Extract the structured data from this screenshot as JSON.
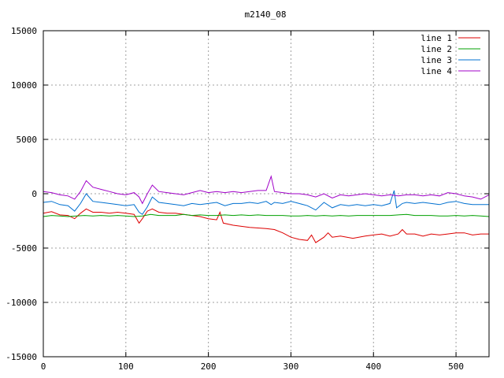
{
  "chart_data": {
    "type": "line",
    "title": "m2140_08",
    "xlabel": "",
    "ylabel": "",
    "xlim": [
      0,
      540
    ],
    "ylim": [
      -15000,
      15000
    ],
    "grid": true,
    "legend_position": "top-right",
    "x_ticks": [
      0,
      100,
      200,
      300,
      400,
      500
    ],
    "y_ticks": [
      -15000,
      -10000,
      -5000,
      0,
      5000,
      10000,
      15000
    ],
    "series": [
      {
        "name": "line 1",
        "color": "#dd0000",
        "points": [
          [
            0,
            -1800
          ],
          [
            10,
            -1650
          ],
          [
            20,
            -1950
          ],
          [
            30,
            -2000
          ],
          [
            38,
            -2300
          ],
          [
            45,
            -1800
          ],
          [
            52,
            -1400
          ],
          [
            60,
            -1700
          ],
          [
            70,
            -1700
          ],
          [
            80,
            -1800
          ],
          [
            90,
            -1700
          ],
          [
            100,
            -1800
          ],
          [
            110,
            -1900
          ],
          [
            116,
            -2700
          ],
          [
            120,
            -2300
          ],
          [
            126,
            -1600
          ],
          [
            132,
            -1400
          ],
          [
            140,
            -1700
          ],
          [
            150,
            -1800
          ],
          [
            160,
            -1800
          ],
          [
            170,
            -1900
          ],
          [
            180,
            -2000
          ],
          [
            190,
            -2100
          ],
          [
            200,
            -2300
          ],
          [
            210,
            -2400
          ],
          [
            214,
            -1700
          ],
          [
            218,
            -2700
          ],
          [
            230,
            -2900
          ],
          [
            250,
            -3100
          ],
          [
            270,
            -3200
          ],
          [
            280,
            -3300
          ],
          [
            290,
            -3600
          ],
          [
            300,
            -4000
          ],
          [
            310,
            -4200
          ],
          [
            320,
            -4300
          ],
          [
            325,
            -3800
          ],
          [
            330,
            -4500
          ],
          [
            340,
            -4000
          ],
          [
            345,
            -3600
          ],
          [
            350,
            -4000
          ],
          [
            360,
            -3900
          ],
          [
            375,
            -4100
          ],
          [
            390,
            -3900
          ],
          [
            400,
            -3800
          ],
          [
            410,
            -3700
          ],
          [
            420,
            -3900
          ],
          [
            430,
            -3700
          ],
          [
            435,
            -3300
          ],
          [
            440,
            -3700
          ],
          [
            450,
            -3700
          ],
          [
            460,
            -3900
          ],
          [
            470,
            -3700
          ],
          [
            480,
            -3800
          ],
          [
            490,
            -3700
          ],
          [
            500,
            -3600
          ],
          [
            510,
            -3600
          ],
          [
            520,
            -3800
          ],
          [
            530,
            -3700
          ],
          [
            540,
            -3700
          ]
        ]
      },
      {
        "name": "line 2",
        "color": "#00a000",
        "points": [
          [
            0,
            -2100
          ],
          [
            10,
            -2000
          ],
          [
            20,
            -2050
          ],
          [
            30,
            -2100
          ],
          [
            40,
            -2050
          ],
          [
            50,
            -2000
          ],
          [
            60,
            -2050
          ],
          [
            70,
            -2000
          ],
          [
            80,
            -2050
          ],
          [
            90,
            -2000
          ],
          [
            100,
            -2050
          ],
          [
            110,
            -2100
          ],
          [
            120,
            -2050
          ],
          [
            130,
            -1900
          ],
          [
            140,
            -2000
          ],
          [
            150,
            -2000
          ],
          [
            160,
            -2000
          ],
          [
            170,
            -1900
          ],
          [
            180,
            -2000
          ],
          [
            190,
            -1950
          ],
          [
            200,
            -2000
          ],
          [
            210,
            -2000
          ],
          [
            220,
            -1950
          ],
          [
            230,
            -2000
          ],
          [
            240,
            -1950
          ],
          [
            250,
            -2000
          ],
          [
            260,
            -1950
          ],
          [
            270,
            -2000
          ],
          [
            280,
            -2000
          ],
          [
            290,
            -2000
          ],
          [
            300,
            -2050
          ],
          [
            310,
            -2050
          ],
          [
            320,
            -2000
          ],
          [
            330,
            -2050
          ],
          [
            340,
            -2000
          ],
          [
            350,
            -2050
          ],
          [
            360,
            -2000
          ],
          [
            370,
            -2050
          ],
          [
            380,
            -2000
          ],
          [
            390,
            -2000
          ],
          [
            400,
            -2000
          ],
          [
            410,
            -2000
          ],
          [
            420,
            -2000
          ],
          [
            430,
            -1950
          ],
          [
            440,
            -1900
          ],
          [
            450,
            -2000
          ],
          [
            460,
            -2000
          ],
          [
            470,
            -2000
          ],
          [
            480,
            -2050
          ],
          [
            490,
            -2050
          ],
          [
            500,
            -2000
          ],
          [
            510,
            -2050
          ],
          [
            520,
            -2000
          ],
          [
            530,
            -2050
          ],
          [
            540,
            -2100
          ]
        ]
      },
      {
        "name": "line 3",
        "color": "#0070d0",
        "points": [
          [
            0,
            -800
          ],
          [
            10,
            -700
          ],
          [
            20,
            -1000
          ],
          [
            30,
            -1100
          ],
          [
            38,
            -1600
          ],
          [
            45,
            -900
          ],
          [
            52,
            0
          ],
          [
            60,
            -700
          ],
          [
            70,
            -800
          ],
          [
            80,
            -900
          ],
          [
            90,
            -1000
          ],
          [
            100,
            -1100
          ],
          [
            110,
            -1000
          ],
          [
            116,
            -1700
          ],
          [
            120,
            -1900
          ],
          [
            126,
            -1200
          ],
          [
            132,
            -300
          ],
          [
            140,
            -800
          ],
          [
            150,
            -900
          ],
          [
            160,
            -1000
          ],
          [
            170,
            -1100
          ],
          [
            180,
            -900
          ],
          [
            190,
            -1000
          ],
          [
            200,
            -900
          ],
          [
            210,
            -800
          ],
          [
            220,
            -1100
          ],
          [
            230,
            -900
          ],
          [
            240,
            -900
          ],
          [
            250,
            -800
          ],
          [
            260,
            -900
          ],
          [
            270,
            -700
          ],
          [
            276,
            -1000
          ],
          [
            280,
            -800
          ],
          [
            290,
            -900
          ],
          [
            300,
            -700
          ],
          [
            310,
            -900
          ],
          [
            320,
            -1100
          ],
          [
            330,
            -1500
          ],
          [
            340,
            -800
          ],
          [
            350,
            -1300
          ],
          [
            360,
            -1000
          ],
          [
            370,
            -1100
          ],
          [
            380,
            -1000
          ],
          [
            390,
            -1100
          ],
          [
            400,
            -1000
          ],
          [
            410,
            -1100
          ],
          [
            420,
            -900
          ],
          [
            425,
            300
          ],
          [
            428,
            -1300
          ],
          [
            435,
            -900
          ],
          [
            440,
            -800
          ],
          [
            450,
            -900
          ],
          [
            460,
            -800
          ],
          [
            470,
            -900
          ],
          [
            480,
            -1000
          ],
          [
            490,
            -800
          ],
          [
            500,
            -700
          ],
          [
            510,
            -900
          ],
          [
            520,
            -1000
          ],
          [
            530,
            -1000
          ],
          [
            540,
            -1000
          ]
        ]
      },
      {
        "name": "line 4",
        "color": "#a000c8",
        "points": [
          [
            0,
            200
          ],
          [
            10,
            100
          ],
          [
            20,
            -100
          ],
          [
            30,
            -200
          ],
          [
            38,
            -500
          ],
          [
            45,
            200
          ],
          [
            52,
            1200
          ],
          [
            60,
            600
          ],
          [
            70,
            400
          ],
          [
            80,
            200
          ],
          [
            90,
            0
          ],
          [
            100,
            -100
          ],
          [
            110,
            100
          ],
          [
            116,
            -300
          ],
          [
            120,
            -900
          ],
          [
            126,
            0
          ],
          [
            132,
            800
          ],
          [
            140,
            200
          ],
          [
            150,
            100
          ],
          [
            160,
            0
          ],
          [
            170,
            -100
          ],
          [
            180,
            100
          ],
          [
            190,
            300
          ],
          [
            200,
            100
          ],
          [
            210,
            200
          ],
          [
            220,
            100
          ],
          [
            230,
            200
          ],
          [
            240,
            100
          ],
          [
            250,
            200
          ],
          [
            260,
            300
          ],
          [
            270,
            300
          ],
          [
            276,
            1600
          ],
          [
            280,
            200
          ],
          [
            290,
            100
          ],
          [
            300,
            0
          ],
          [
            310,
            0
          ],
          [
            320,
            -100
          ],
          [
            330,
            -300
          ],
          [
            340,
            0
          ],
          [
            350,
            -400
          ],
          [
            360,
            -100
          ],
          [
            370,
            -200
          ],
          [
            380,
            -100
          ],
          [
            390,
            0
          ],
          [
            400,
            -100
          ],
          [
            410,
            -200
          ],
          [
            420,
            -100
          ],
          [
            430,
            -200
          ],
          [
            440,
            -100
          ],
          [
            450,
            -100
          ],
          [
            460,
            -200
          ],
          [
            470,
            -100
          ],
          [
            480,
            -200
          ],
          [
            490,
            100
          ],
          [
            500,
            0
          ],
          [
            510,
            -200
          ],
          [
            520,
            -300
          ],
          [
            530,
            -500
          ],
          [
            540,
            -100
          ]
        ]
      }
    ]
  }
}
